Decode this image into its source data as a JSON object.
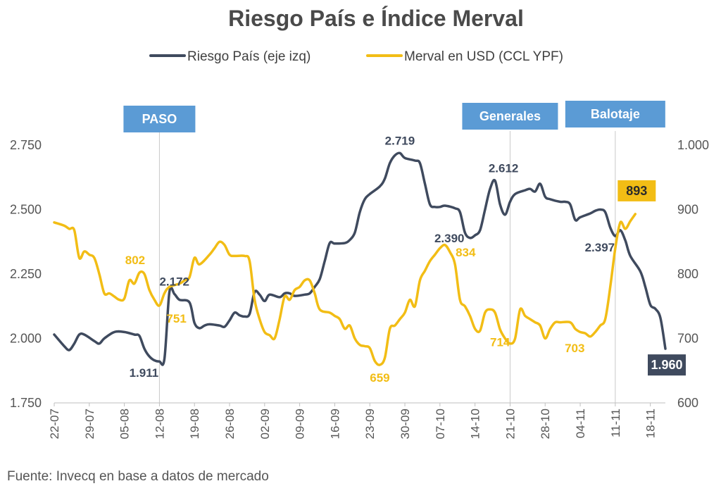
{
  "chart_data": {
    "type": "line",
    "title": "Riesgo País e Índice Merval",
    "source": "Fuente: Invecq en base a datos de mercado",
    "colors": {
      "riesgo": "#3f4a5e",
      "merval": "#f2bd15",
      "event": "#5b9bd5",
      "grid": "#c8c8c8"
    },
    "x_labels": [
      "22-07",
      "29-07",
      "05-08",
      "12-08",
      "19-08",
      "26-08",
      "02-09",
      "09-09",
      "16-09",
      "23-09",
      "30-09",
      "07-10",
      "14-10",
      "21-10",
      "28-10",
      "04-11",
      "11-11",
      "18-11"
    ],
    "y_left": {
      "label": "Riesgo País (eje izq)",
      "ylim": [
        1750,
        2750
      ],
      "ticks": [
        "1.750",
        "2.000",
        "2.250",
        "2.500",
        "2.750"
      ]
    },
    "y_right": {
      "label": "Merval en USD (CCL YPF)",
      "ylim": [
        600,
        1000
      ],
      "ticks": [
        "600",
        "700",
        "800",
        "900",
        "1.000"
      ]
    },
    "events": [
      {
        "label": "PASO",
        "x": 21
      },
      {
        "label": "Generales",
        "x": 91
      },
      {
        "label": "Balotaje",
        "x": 112
      }
    ],
    "series": [
      {
        "name": "Riesgo País (eje izq)",
        "axis": "left",
        "points": [
          [
            0,
            2015
          ],
          [
            2,
            1970
          ],
          [
            3,
            1955
          ],
          [
            4,
            1980
          ],
          [
            5,
            2015
          ],
          [
            6,
            2015
          ],
          [
            8,
            1990
          ],
          [
            9,
            1980
          ],
          [
            10,
            2000
          ],
          [
            12,
            2025
          ],
          [
            14,
            2025
          ],
          [
            16,
            2015
          ],
          [
            17,
            2010
          ],
          [
            18,
            1960
          ],
          [
            19,
            1930
          ],
          [
            20,
            1915
          ],
          [
            21,
            1911
          ],
          [
            22,
            1920
          ],
          [
            23,
            2180
          ],
          [
            24,
            2172
          ],
          [
            25,
            2150
          ],
          [
            27,
            2140
          ],
          [
            28,
            2060
          ],
          [
            29,
            2040
          ],
          [
            30,
            2050
          ],
          [
            31,
            2055
          ],
          [
            33,
            2050
          ],
          [
            34,
            2045
          ],
          [
            35,
            2070
          ],
          [
            36,
            2100
          ],
          [
            37,
            2090
          ],
          [
            38,
            2085
          ],
          [
            39,
            2095
          ],
          [
            40,
            2180
          ],
          [
            41,
            2170
          ],
          [
            42,
            2145
          ],
          [
            43,
            2170
          ],
          [
            45,
            2160
          ],
          [
            46,
            2175
          ],
          [
            47,
            2175
          ],
          [
            48,
            2165
          ],
          [
            50,
            2170
          ],
          [
            51,
            2175
          ],
          [
            52,
            2200
          ],
          [
            53,
            2230
          ],
          [
            54,
            2300
          ],
          [
            55,
            2370
          ],
          [
            56,
            2368
          ],
          [
            58,
            2370
          ],
          [
            59,
            2382
          ],
          [
            60,
            2410
          ],
          [
            61,
            2490
          ],
          [
            62,
            2540
          ],
          [
            63,
            2560
          ],
          [
            65,
            2590
          ],
          [
            66,
            2620
          ],
          [
            67,
            2680
          ],
          [
            68,
            2710
          ],
          [
            69,
            2719
          ],
          [
            70,
            2700
          ],
          [
            72,
            2690
          ],
          [
            73,
            2680
          ],
          [
            74,
            2600
          ],
          [
            75,
            2520
          ],
          [
            76,
            2510
          ],
          [
            77,
            2510
          ],
          [
            78,
            2515
          ],
          [
            80,
            2505
          ],
          [
            81,
            2490
          ],
          [
            82,
            2410
          ],
          [
            83,
            2390
          ],
          [
            84,
            2400
          ],
          [
            85,
            2420
          ],
          [
            86,
            2500
          ],
          [
            87,
            2580
          ],
          [
            88,
            2612
          ],
          [
            89,
            2520
          ],
          [
            90,
            2480
          ],
          [
            91,
            2530
          ],
          [
            92,
            2560
          ],
          [
            94,
            2575
          ],
          [
            95,
            2580
          ],
          [
            96,
            2570
          ],
          [
            97,
            2600
          ],
          [
            98,
            2550
          ],
          [
            99,
            2540
          ],
          [
            101,
            2530
          ],
          [
            102,
            2530
          ],
          [
            103,
            2520
          ],
          [
            104,
            2460
          ],
          [
            105,
            2470
          ],
          [
            107,
            2485
          ],
          [
            108,
            2495
          ],
          [
            109,
            2500
          ],
          [
            110,
            2490
          ],
          [
            111,
            2430
          ],
          [
            112,
            2397
          ],
          [
            113,
            2420
          ],
          [
            114,
            2380
          ],
          [
            115,
            2320
          ],
          [
            117,
            2260
          ],
          [
            118,
            2200
          ],
          [
            119,
            2130
          ],
          [
            120,
            2115
          ],
          [
            121,
            2080
          ],
          [
            122,
            1960
          ]
        ]
      },
      {
        "name": "Merval en USD (CCL YPF)",
        "axis": "right",
        "points": [
          [
            0,
            880
          ],
          [
            2,
            875
          ],
          [
            3,
            870
          ],
          [
            4,
            868
          ],
          [
            5,
            825
          ],
          [
            6,
            835
          ],
          [
            7,
            830
          ],
          [
            8,
            825
          ],
          [
            9,
            800
          ],
          [
            10,
            770
          ],
          [
            11,
            770
          ],
          [
            12,
            765
          ],
          [
            13,
            760
          ],
          [
            14,
            762
          ],
          [
            15,
            790
          ],
          [
            16,
            785
          ],
          [
            17,
            802
          ],
          [
            18,
            800
          ],
          [
            19,
            775
          ],
          [
            20,
            760
          ],
          [
            21,
            751
          ],
          [
            22,
            770
          ],
          [
            23,
            780
          ],
          [
            25,
            785
          ],
          [
            26,
            790
          ],
          [
            27,
            795
          ],
          [
            28,
            825
          ],
          [
            29,
            815
          ],
          [
            31,
            830
          ],
          [
            32,
            840
          ],
          [
            33,
            850
          ],
          [
            34,
            845
          ],
          [
            35,
            830
          ],
          [
            36,
            828
          ],
          [
            38,
            828
          ],
          [
            39,
            820
          ],
          [
            40,
            760
          ],
          [
            41,
            730
          ],
          [
            42,
            710
          ],
          [
            43,
            705
          ],
          [
            44,
            700
          ],
          [
            45,
            730
          ],
          [
            46,
            765
          ],
          [
            47,
            760
          ],
          [
            48,
            775
          ],
          [
            49,
            780
          ],
          [
            50,
            790
          ],
          [
            51,
            790
          ],
          [
            52,
            770
          ],
          [
            53,
            745
          ],
          [
            55,
            740
          ],
          [
            56,
            735
          ],
          [
            57,
            730
          ],
          [
            58,
            715
          ],
          [
            59,
            720
          ],
          [
            60,
            700
          ],
          [
            61,
            690
          ],
          [
            62,
            688
          ],
          [
            63,
            685
          ],
          [
            64,
            665
          ],
          [
            65,
            659
          ],
          [
            66,
            670
          ],
          [
            67,
            715
          ],
          [
            68,
            720
          ],
          [
            69,
            730
          ],
          [
            70,
            740
          ],
          [
            71,
            760
          ],
          [
            72,
            750
          ],
          [
            73,
            790
          ],
          [
            74,
            805
          ],
          [
            75,
            820
          ],
          [
            76,
            830
          ],
          [
            77,
            840
          ],
          [
            78,
            845
          ],
          [
            79,
            834
          ],
          [
            80,
            815
          ],
          [
            81,
            760
          ],
          [
            82,
            750
          ],
          [
            83,
            735
          ],
          [
            84,
            715
          ],
          [
            85,
            712
          ],
          [
            86,
            740
          ],
          [
            87,
            745
          ],
          [
            88,
            740
          ],
          [
            89,
            714
          ],
          [
            90,
            700
          ],
          [
            91,
            692
          ],
          [
            92,
            700
          ],
          [
            93,
            745
          ],
          [
            94,
            735
          ],
          [
            95,
            730
          ],
          [
            96,
            725
          ],
          [
            97,
            720
          ],
          [
            98,
            700
          ],
          [
            99,
            715
          ],
          [
            100,
            725
          ],
          [
            101,
            725
          ],
          [
            103,
            725
          ],
          [
            104,
            715
          ],
          [
            105,
            710
          ],
          [
            106,
            708
          ],
          [
            107,
            703
          ],
          [
            108,
            710
          ],
          [
            109,
            720
          ],
          [
            110,
            730
          ],
          [
            111,
            780
          ],
          [
            112,
            840
          ],
          [
            113,
            880
          ],
          [
            114,
            870
          ],
          [
            115,
            882
          ],
          [
            116,
            893
          ]
        ]
      }
    ],
    "annotations": [
      {
        "text": "1.911",
        "series": "Riesgo País (eje izq)",
        "x": 21,
        "y": 1911,
        "color": "#3f4a5e",
        "pos": "below-left"
      },
      {
        "text": "2.172",
        "series": "Riesgo País (eje izq)",
        "x": 24,
        "y": 2172,
        "color": "#3f4a5e",
        "pos": "above"
      },
      {
        "text": "2.719",
        "series": "Riesgo País (eje izq)",
        "x": 69,
        "y": 2719,
        "color": "#3f4a5e",
        "pos": "above"
      },
      {
        "text": "2.390",
        "series": "Riesgo País (eje izq)",
        "x": 83,
        "y": 2390,
        "color": "#3f4a5e",
        "pos": "left"
      },
      {
        "text": "2.612",
        "series": "Riesgo País (eje izq)",
        "x": 88,
        "y": 2612,
        "color": "#3f4a5e",
        "pos": "above-right"
      },
      {
        "text": "2.397",
        "series": "Riesgo País (eje izq)",
        "x": 112,
        "y": 2397,
        "color": "#3f4a5e",
        "pos": "below-left"
      },
      {
        "text": "1.960",
        "series": "Riesgo País (eje izq)",
        "x": 122,
        "y": 1960,
        "color": "#3f4a5e",
        "pos": "box-below"
      },
      {
        "text": "802",
        "series": "Merval en USD (CCL YPF)",
        "x": 17,
        "y": 802,
        "color": "#f2bd15",
        "pos": "above-left"
      },
      {
        "text": "751",
        "series": "Merval en USD (CCL YPF)",
        "x": 21,
        "y": 751,
        "color": "#f2bd15",
        "pos": "below-right"
      },
      {
        "text": "659",
        "series": "Merval en USD (CCL YPF)",
        "x": 65,
        "y": 659,
        "color": "#f2bd15",
        "pos": "below"
      },
      {
        "text": "834",
        "series": "Merval en USD (CCL YPF)",
        "x": 79,
        "y": 834,
        "color": "#f2bd15",
        "pos": "right"
      },
      {
        "text": "714",
        "series": "Merval en USD (CCL YPF)",
        "x": 89,
        "y": 714,
        "color": "#f2bd15",
        "pos": "below"
      },
      {
        "text": "703",
        "series": "Merval en USD (CCL YPF)",
        "x": 107,
        "y": 703,
        "color": "#f2bd15",
        "pos": "below-left"
      },
      {
        "text": "893",
        "series": "Merval en USD (CCL YPF)",
        "x": 116,
        "y": 893,
        "color": "#f2bd15",
        "pos": "box-above"
      }
    ]
  }
}
